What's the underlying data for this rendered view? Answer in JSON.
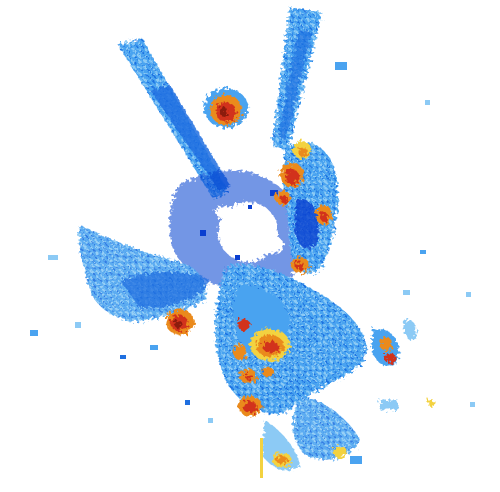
{
  "palette": {
    "background": "#ffffff",
    "light_blue": "#4aa3f0",
    "pale_blue": "#8ccaf5",
    "blue": "#1f6fe0",
    "dark_blue": "#0a3fd0",
    "yellow": "#f3d240",
    "orange": "#ea8a1c",
    "red": "#d2321a",
    "dark_red": "#8c1a0c"
  }
}
